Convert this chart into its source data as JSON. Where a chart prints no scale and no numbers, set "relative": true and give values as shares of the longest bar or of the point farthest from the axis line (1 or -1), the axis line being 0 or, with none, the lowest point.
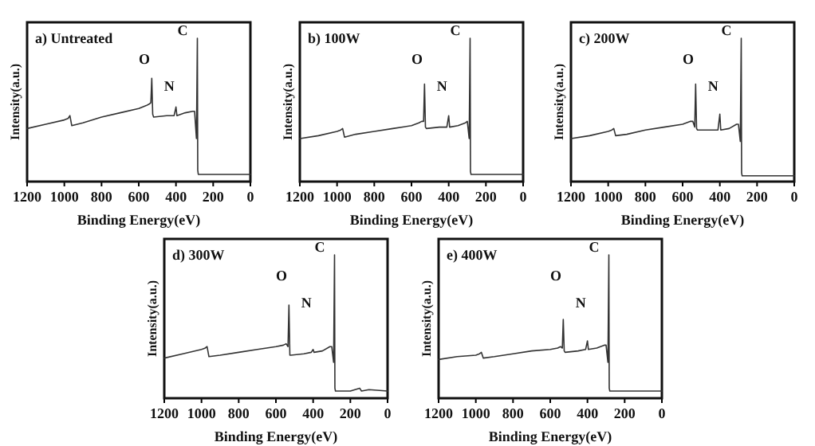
{
  "chart_data": [
    {
      "type": "line",
      "title": "a) Untreated",
      "xlabel": "Binding Energy(eV)",
      "ylabel": "Intensity(a.u.)",
      "relative": true,
      "xlim": [
        1200,
        0
      ],
      "xticks": [
        1200,
        1000,
        800,
        600,
        400,
        200,
        0
      ],
      "series": [
        {
          "color": "#333333",
          "x": [
            1200,
            1100,
            1000,
            980,
            970,
            960,
            900,
            800,
            700,
            600,
            560,
            545,
            535,
            530,
            525,
            520,
            450,
            410,
            400,
            395,
            350,
            310,
            300,
            290,
            285,
            283,
            280,
            200,
            100,
            0
          ],
          "values": [
            0.37,
            0.4,
            0.43,
            0.44,
            0.46,
            0.39,
            0.41,
            0.45,
            0.48,
            0.51,
            0.53,
            0.54,
            0.55,
            0.72,
            0.47,
            0.45,
            0.46,
            0.46,
            0.52,
            0.46,
            0.48,
            0.49,
            0.49,
            0.3,
            1.0,
            0.08,
            0.05,
            0.05,
            0.05,
            0.05
          ]
        }
      ],
      "annotations": [
        "O",
        "N",
        "C"
      ]
    },
    {
      "type": "line",
      "title": "b) 100W",
      "xlabel": "Binding Energy(eV)",
      "ylabel": "Intensity(a.u.)",
      "relative": true,
      "xlim": [
        1200,
        0
      ],
      "xticks": [
        1200,
        1000,
        800,
        600,
        400,
        200,
        0
      ],
      "series": [
        {
          "color": "#333333",
          "x": [
            1200,
            1100,
            1000,
            980,
            970,
            960,
            900,
            800,
            700,
            600,
            560,
            545,
            535,
            530,
            525,
            520,
            450,
            410,
            400,
            395,
            350,
            310,
            300,
            290,
            285,
            283,
            280,
            200,
            100,
            0
          ],
          "values": [
            0.3,
            0.32,
            0.35,
            0.36,
            0.37,
            0.31,
            0.33,
            0.35,
            0.37,
            0.39,
            0.41,
            0.42,
            0.42,
            0.68,
            0.38,
            0.37,
            0.38,
            0.38,
            0.46,
            0.38,
            0.39,
            0.41,
            0.42,
            0.3,
            1.0,
            0.07,
            0.05,
            0.05,
            0.05,
            0.05
          ]
        }
      ],
      "annotations": [
        "O",
        "N",
        "C"
      ]
    },
    {
      "type": "line",
      "title": "c) 200W",
      "xlabel": "Binding Energy(eV)",
      "ylabel": "Intensity(a.u.)",
      "relative": true,
      "xlim": [
        1200,
        0
      ],
      "xticks": [
        1200,
        1000,
        800,
        600,
        400,
        200,
        0
      ],
      "series": [
        {
          "color": "#333333",
          "x": [
            1200,
            1100,
            1000,
            980,
            970,
            960,
            900,
            800,
            700,
            600,
            560,
            545,
            535,
            530,
            525,
            520,
            450,
            410,
            400,
            395,
            350,
            310,
            300,
            290,
            285,
            283,
            280,
            200,
            100,
            0
          ],
          "values": [
            0.3,
            0.32,
            0.35,
            0.36,
            0.37,
            0.32,
            0.33,
            0.36,
            0.38,
            0.4,
            0.42,
            0.42,
            0.38,
            0.68,
            0.37,
            0.36,
            0.36,
            0.36,
            0.47,
            0.36,
            0.37,
            0.4,
            0.4,
            0.28,
            1.0,
            0.06,
            0.04,
            0.04,
            0.04,
            0.04
          ]
        }
      ],
      "annotations": [
        "O",
        "N",
        "C"
      ]
    },
    {
      "type": "line",
      "title": "d) 300W",
      "xlabel": "Binding Energy(eV)",
      "ylabel": "Intensity(a.u.)",
      "relative": true,
      "xlim": [
        1200,
        0
      ],
      "xticks": [
        1200,
        1000,
        800,
        600,
        400,
        200,
        0
      ],
      "series": [
        {
          "color": "#333333",
          "x": [
            1200,
            1100,
            1000,
            980,
            970,
            960,
            900,
            800,
            700,
            600,
            560,
            545,
            535,
            530,
            525,
            520,
            450,
            410,
            400,
            395,
            350,
            310,
            300,
            290,
            285,
            283,
            280,
            200,
            150,
            140,
            100,
            0
          ],
          "values": [
            0.28,
            0.31,
            0.34,
            0.35,
            0.36,
            0.29,
            0.3,
            0.32,
            0.34,
            0.36,
            0.37,
            0.38,
            0.36,
            0.65,
            0.3,
            0.3,
            0.31,
            0.32,
            0.34,
            0.32,
            0.33,
            0.36,
            0.36,
            0.25,
            1.0,
            0.07,
            0.05,
            0.05,
            0.07,
            0.05,
            0.06,
            0.05
          ]
        }
      ],
      "annotations": [
        "O",
        "N",
        "C"
      ]
    },
    {
      "type": "line",
      "title": "e) 400W",
      "xlabel": "Binding Energy(eV)",
      "ylabel": "Intensity(a.u.)",
      "relative": true,
      "xlim": [
        1200,
        0
      ],
      "xticks": [
        1200,
        1000,
        800,
        600,
        400,
        200,
        0
      ],
      "series": [
        {
          "color": "#333333",
          "x": [
            1200,
            1100,
            1000,
            980,
            970,
            960,
            900,
            800,
            700,
            600,
            560,
            545,
            535,
            530,
            525,
            520,
            450,
            410,
            400,
            395,
            350,
            310,
            300,
            290,
            285,
            283,
            280,
            200,
            100,
            0
          ],
          "values": [
            0.27,
            0.29,
            0.3,
            0.31,
            0.32,
            0.28,
            0.29,
            0.31,
            0.33,
            0.34,
            0.35,
            0.36,
            0.35,
            0.55,
            0.33,
            0.32,
            0.33,
            0.34,
            0.4,
            0.34,
            0.35,
            0.37,
            0.37,
            0.25,
            1.0,
            0.07,
            0.05,
            0.05,
            0.05,
            0.05
          ]
        }
      ],
      "annotations": [
        "O",
        "N",
        "C"
      ]
    }
  ]
}
